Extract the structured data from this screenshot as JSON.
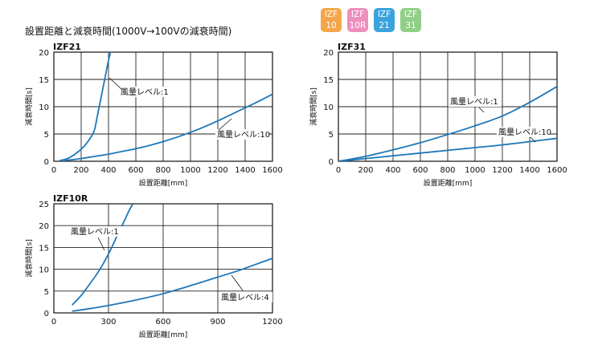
{
  "page_title": "設置距離と減衰時間(1000V→100Vの減衰時間)",
  "badges": [
    {
      "line1": "IZF",
      "line2": "10",
      "color": "#f5a64a"
    },
    {
      "line1": "IZF",
      "line2": "10R",
      "color": "#ee8fbd"
    },
    {
      "line1": "IZF",
      "line2": "21",
      "color": "#3aa3dc"
    },
    {
      "line1": "IZF",
      "line2": "31",
      "color": "#8fcf86"
    }
  ],
  "line_color": "#1f77b8",
  "chart_data": [
    {
      "type": "line",
      "title": "IZF21",
      "xlabel": "設置距離[mm]",
      "ylabel": "減衰時間[s]",
      "xlim": [
        0,
        1600
      ],
      "ylim": [
        0,
        20
      ],
      "xticks": [
        0,
        200,
        400,
        600,
        800,
        1000,
        1200,
        1400,
        1600
      ],
      "yticks": [
        0,
        5,
        10,
        15,
        20
      ],
      "grid": true,
      "series": [
        {
          "name": "風量レベル:1",
          "x": [
            40,
            100,
            160,
            220,
            260,
            285,
            300,
            320,
            340,
            360,
            380,
            400,
            420
          ],
          "y": [
            0.1,
            0.5,
            1.4,
            2.7,
            4.0,
            5.0,
            6.0,
            8.5,
            11.0,
            13.5,
            16.0,
            18.5,
            20.5
          ]
        },
        {
          "name": "風量レベル:10",
          "x": [
            40,
            100,
            200,
            300,
            400,
            500,
            600,
            700,
            800,
            900,
            1000,
            1100,
            1200,
            1300,
            1400,
            1500,
            1600
          ],
          "y": [
            0.0,
            0.2,
            0.5,
            0.9,
            1.3,
            1.8,
            2.3,
            2.9,
            3.6,
            4.4,
            5.3,
            6.3,
            7.4,
            8.6,
            9.8,
            11.0,
            12.3
          ]
        }
      ]
    },
    {
      "type": "line",
      "title": "IZF31",
      "xlabel": "設置距離[mm]",
      "ylabel": "減衰時間[s]",
      "xlim": [
        0,
        1600
      ],
      "ylim": [
        0,
        20
      ],
      "xticks": [
        0,
        200,
        400,
        600,
        800,
        1000,
        1200,
        1400,
        1600
      ],
      "yticks": [
        0,
        5,
        10,
        15,
        20
      ],
      "grid": true,
      "series": [
        {
          "name": "風量レベル:1",
          "x": [
            0,
            200,
            400,
            600,
            800,
            1000,
            1200,
            1400,
            1600
          ],
          "y": [
            0.0,
            0.9,
            2.1,
            3.4,
            4.9,
            6.5,
            8.3,
            10.8,
            13.7
          ]
        },
        {
          "name": "風量レベル:10",
          "x": [
            0,
            200,
            400,
            600,
            800,
            1000,
            1200,
            1400,
            1600
          ],
          "y": [
            0.0,
            0.5,
            1.0,
            1.5,
            2.0,
            2.5,
            3.0,
            3.6,
            4.2
          ]
        }
      ]
    },
    {
      "type": "line",
      "title": "IZF10R",
      "xlabel": "設置距離[mm]",
      "ylabel": "減衰時間[s]",
      "xlim": [
        0,
        1200
      ],
      "ylim": [
        0,
        25
      ],
      "xticks": [
        0,
        300,
        600,
        900,
        1200
      ],
      "yticks": [
        0,
        5,
        10,
        15,
        20,
        25
      ],
      "grid": true,
      "series": [
        {
          "name": "風量レベル:1",
          "x": [
            100,
            150,
            200,
            250,
            300,
            340,
            380,
            420,
            450
          ],
          "y": [
            1.8,
            4.0,
            6.8,
            9.8,
            13.5,
            17.0,
            20.5,
            24.0,
            26.0
          ]
        },
        {
          "name": "風量レベル:4",
          "x": [
            100,
            200,
            300,
            400,
            500,
            600,
            700,
            800,
            900,
            1000,
            1100,
            1200
          ],
          "y": [
            0.4,
            1.0,
            1.7,
            2.5,
            3.4,
            4.4,
            5.6,
            6.9,
            8.2,
            9.5,
            11.0,
            12.5
          ]
        }
      ]
    }
  ]
}
